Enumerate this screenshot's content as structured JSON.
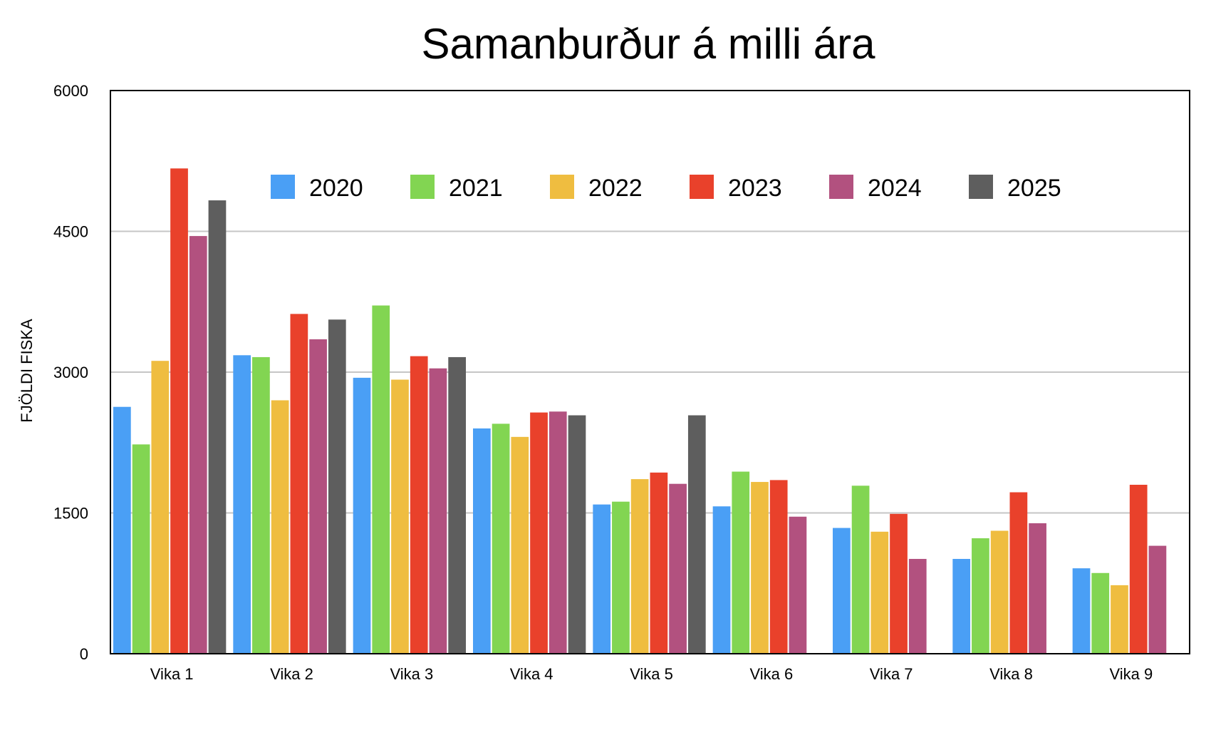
{
  "chart_data": {
    "type": "bar",
    "title": "Samanburður á milli ára",
    "ylabel": "FJÖLDI FISKA",
    "xlabel": "",
    "ylim": [
      0,
      6000
    ],
    "yticks": [
      0,
      1500,
      3000,
      4500,
      6000
    ],
    "grid": true,
    "legend_position": "top",
    "categories": [
      "Vika 1",
      "Vika 2",
      "Vika 3",
      "Vika 4",
      "Vika 5",
      "Vika 6",
      "Vika 7",
      "Vika 8",
      "Vika 9"
    ],
    "series": [
      {
        "name": "2020",
        "color": "#4A9FF5",
        "values": [
          2630,
          3180,
          2940,
          2400,
          1590,
          1570,
          1340,
          1010,
          910
        ]
      },
      {
        "name": "2021",
        "color": "#82D552",
        "values": [
          2230,
          3160,
          3710,
          2450,
          1620,
          1940,
          1790,
          1230,
          860
        ]
      },
      {
        "name": "2022",
        "color": "#EFBD40",
        "values": [
          3120,
          2700,
          2920,
          2310,
          1860,
          1830,
          1300,
          1310,
          730
        ]
      },
      {
        "name": "2023",
        "color": "#E9412B",
        "values": [
          5170,
          3620,
          3170,
          2570,
          1930,
          1850,
          1490,
          1720,
          1800
        ]
      },
      {
        "name": "2024",
        "color": "#B2517F",
        "values": [
          4450,
          3350,
          3040,
          2580,
          1810,
          1460,
          1010,
          1390,
          1150
        ]
      },
      {
        "name": "2025",
        "color": "#5E5E5E",
        "values": [
          4830,
          3560,
          3160,
          2540,
          2540,
          null,
          null,
          null,
          null
        ]
      }
    ]
  }
}
